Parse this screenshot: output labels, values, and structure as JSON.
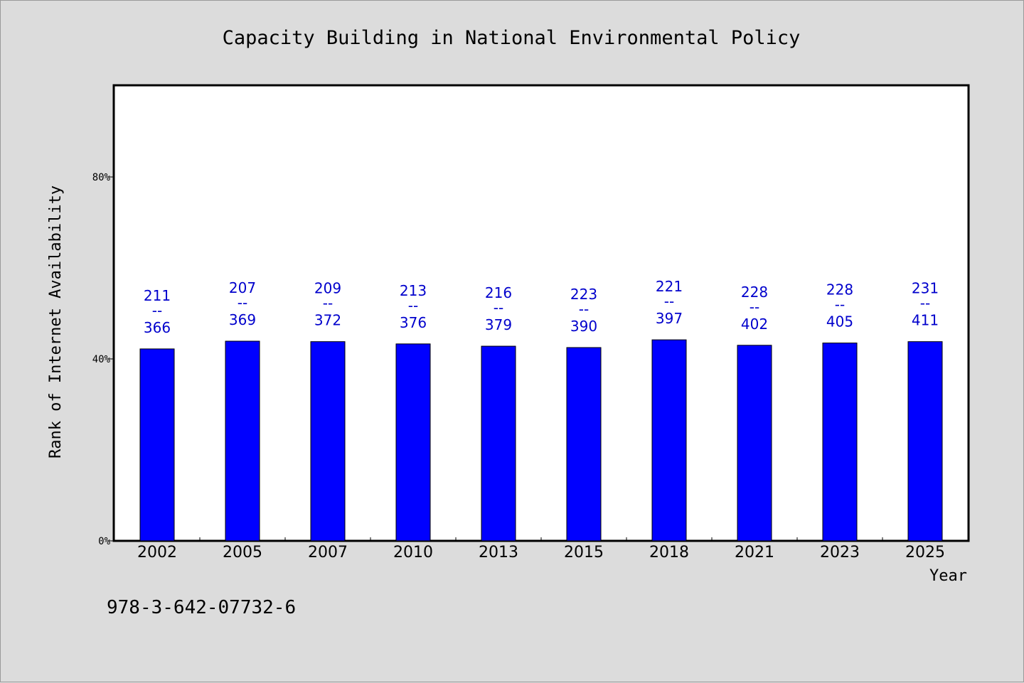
{
  "chart_data": {
    "type": "bar",
    "title": "Capacity Building in National Environmental Policy",
    "xlabel": "Year",
    "ylabel": "Rank of Internet Availability",
    "categories": [
      "2002",
      "2005",
      "2007",
      "2010",
      "2013",
      "2015",
      "2018",
      "2021",
      "2023",
      "2025"
    ],
    "values": [
      42.2,
      43.9,
      43.8,
      43.3,
      42.8,
      42.5,
      44.2,
      43.0,
      43.5,
      43.8
    ],
    "label_top": [
      "211",
      "207",
      "209",
      "213",
      "216",
      "223",
      "221",
      "228",
      "228",
      "231"
    ],
    "label_sep": "--",
    "label_bottom": [
      "366",
      "369",
      "372",
      "376",
      "379",
      "390",
      "397",
      "402",
      "405",
      "411"
    ],
    "ylim": [
      0,
      100
    ],
    "yticks": [
      0,
      40,
      80
    ],
    "ytick_labels": [
      "0%",
      "40%",
      "80%"
    ],
    "grid": false,
    "bar_color": "#0000ff",
    "label_color": "#0000cc"
  },
  "footnote": "978-3-642-07732-6"
}
